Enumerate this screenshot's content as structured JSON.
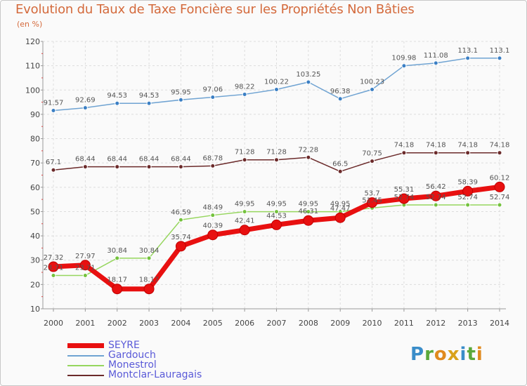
{
  "title": "Evolution du Taux de Taxe Foncière sur les Propriétés Non Bâties",
  "unit_label": "(en %)",
  "brand": {
    "text": "Proxiti",
    "letters": [
      "P",
      "r",
      "o",
      "x",
      "i",
      "t",
      "i"
    ],
    "colors": [
      "#3a8dc9",
      "#5aa83a",
      "#e08a1e",
      "#d9a21c",
      "#3a8dc9",
      "#5aa83a",
      "#e08a1e"
    ]
  },
  "chart_data": {
    "type": "line",
    "x": [
      "2000",
      "2001",
      "2002",
      "2003",
      "2004",
      "2005",
      "2006",
      "2007",
      "2008",
      "2009",
      "2010",
      "2011",
      "2012",
      "2013",
      "2014"
    ],
    "ylim": [
      10,
      120
    ],
    "yticks": [
      10,
      20,
      30,
      40,
      50,
      60,
      70,
      80,
      90,
      100,
      110,
      120
    ],
    "grid": true,
    "legend_position": "bottom-left",
    "series": [
      {
        "name": "Gardouch",
        "color": "#6fa3d2",
        "marker": "#3b7fc4",
        "width": 1.5,
        "values": [
          91.57,
          92.69,
          94.53,
          94.53,
          95.95,
          97.06,
          98.22,
          100.22,
          103.25,
          96.38,
          100.23,
          109.98,
          111.08,
          113.1,
          113.1
        ],
        "labels": [
          "91.57",
          "92.69",
          "94.53",
          "94.53",
          "95.95",
          "97.06",
          "98.22",
          "100.22",
          "103.25",
          "96.38",
          "100.23",
          "109.98",
          "111.08",
          "113.1",
          "113.1"
        ]
      },
      {
        "name": "Montclar-Lauragais",
        "color": "#6b2a2a",
        "marker": "#6b2a2a",
        "width": 1.5,
        "values": [
          67.1,
          68.44,
          68.44,
          68.44,
          68.44,
          68.78,
          71.28,
          71.28,
          72.28,
          66.5,
          70.75,
          74.18,
          74.18,
          74.18,
          74.18
        ],
        "labels": [
          "67.1",
          "68.44",
          "68.44",
          "68.44",
          "68.44",
          "68.78",
          "71.28",
          "71.28",
          "72.28",
          "66.5",
          "70.75",
          "74.18",
          "74.18",
          "74.18",
          "74.18"
        ]
      },
      {
        "name": "Monestrol",
        "color": "#96d65e",
        "marker": "#74c23d",
        "width": 1.5,
        "values": [
          23.71,
          23.71,
          30.84,
          30.84,
          46.59,
          48.49,
          49.95,
          49.95,
          49.95,
          49.95,
          51.45,
          52.74,
          52.74,
          52.74,
          52.74
        ],
        "labels": [
          "23.71",
          "23.71",
          "30.84",
          "30.84",
          "46.59",
          "48.49",
          "49.95",
          "49.95",
          "49.95",
          "49.95",
          "51.45",
          "52.74",
          "52.74",
          "52.74",
          "52.74"
        ]
      },
      {
        "name": "SEYRE",
        "color": "#e81010",
        "marker": "#e81010",
        "width": 7,
        "values": [
          27.32,
          27.97,
          18.17,
          18.17,
          35.74,
          40.39,
          42.41,
          44.53,
          46.31,
          47.47,
          53.7,
          55.31,
          56.42,
          58.39,
          60.12
        ],
        "labels": [
          "27.32",
          "27.97",
          "18.17",
          "18.17",
          "35.74",
          "40.39",
          "42.41",
          "44.53",
          "46.31",
          "47.47",
          "53.7",
          "55.31",
          "56.42",
          "58.39",
          "60.12"
        ]
      }
    ],
    "legend": [
      {
        "name": "SEYRE",
        "color": "#e81010"
      },
      {
        "name": "Gardouch",
        "color": "#6fa3d2"
      },
      {
        "name": "Monestrol",
        "color": "#96d65e"
      },
      {
        "name": "Montclar-Lauragais",
        "color": "#6b2a2a"
      }
    ]
  }
}
